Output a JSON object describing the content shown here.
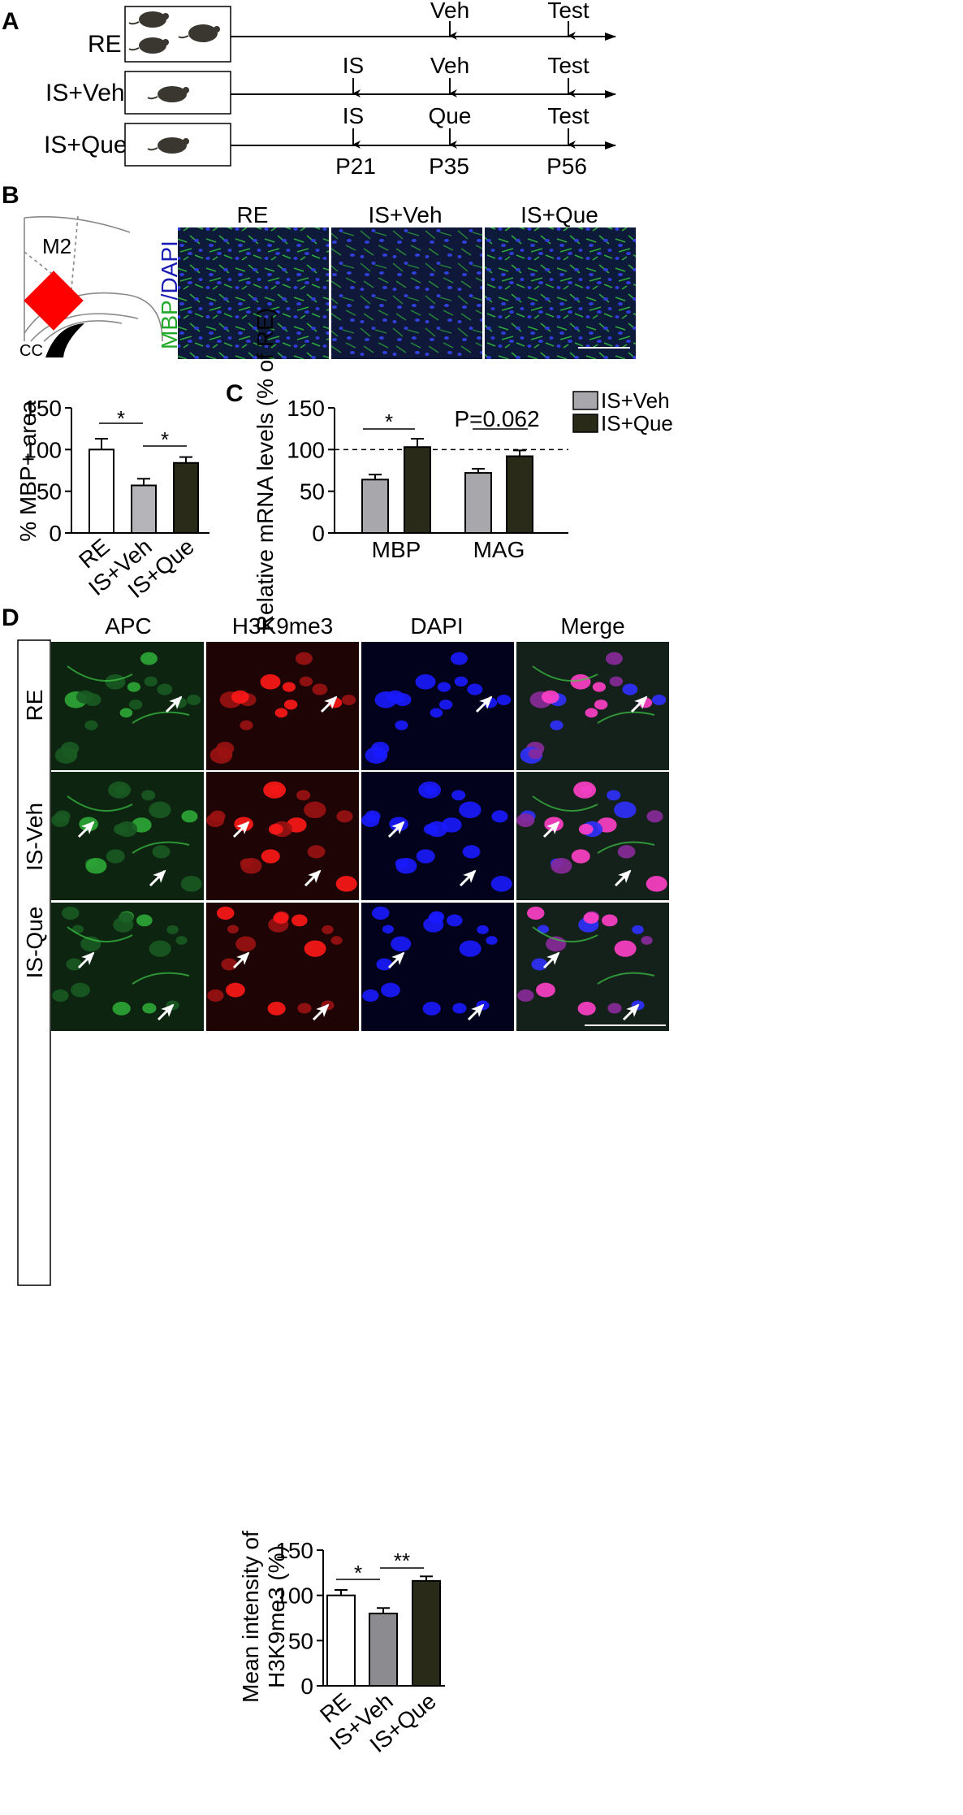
{
  "panels": {
    "A": {
      "letter": "A",
      "groups": [
        "RE",
        "IS+Veh",
        "IS+Que"
      ],
      "events": {
        "RE": {
          "veh": "Veh",
          "test": "Test"
        },
        "ISVeh": {
          "is": "IS",
          "veh": "Veh",
          "test": "Test"
        },
        "ISQue": {
          "is": "IS",
          "que": "Que",
          "test": "Test"
        }
      },
      "ages": [
        "P21",
        "P35",
        "P56"
      ]
    },
    "B": {
      "letter": "B",
      "region_label": "M2",
      "cc_label": "CC",
      "image_titles": [
        "RE",
        "IS+Veh",
        "IS+Que"
      ],
      "stain_label_mbp": "MBP",
      "stain_label_sep": "/",
      "stain_label_dapi": "DAPI",
      "colors": {
        "mbp": "#22a82a",
        "dapi": "#1a1ab4",
        "region": "#ff0000"
      }
    },
    "C": {
      "letter": "C",
      "legend": [
        "IS+Veh",
        "IS+Que"
      ],
      "pvalue_label": "P=0.062",
      "sig_label": "*"
    },
    "D": {
      "letter": "D",
      "column_titles": [
        "APC",
        "H3K9me3",
        "DAPI",
        "Merge"
      ],
      "row_labels": [
        "RE",
        "IS-Veh",
        "IS-Que"
      ],
      "colors": {
        "apc": "#2ea836",
        "h3k9me3": "#ff1010",
        "dapi": "#1a1aff",
        "merge_overlap": "#ff40c8"
      }
    }
  },
  "chart_data": [
    {
      "type": "bar",
      "id": "B-bar",
      "categories": [
        "RE",
        "IS+Veh",
        "IS+Que"
      ],
      "values": [
        100,
        57,
        84
      ],
      "errors": [
        13,
        8,
        7
      ],
      "ylabel": "% MBP+ area",
      "ylim": [
        0,
        150
      ],
      "yticks": [
        0,
        50,
        100,
        150
      ],
      "bar_colors": [
        "#ffffff",
        "#b4b4b8",
        "#2a2a18"
      ],
      "significance": [
        "*",
        "*"
      ]
    },
    {
      "type": "bar",
      "id": "C-bar",
      "categories": [
        "MBP",
        "MAG"
      ],
      "series": [
        {
          "name": "IS+Veh",
          "values": [
            64,
            72
          ],
          "errors": [
            6,
            5
          ],
          "color": "#a8a8ac"
        },
        {
          "name": "IS+Que",
          "values": [
            103,
            92
          ],
          "errors": [
            10,
            7
          ],
          "color": "#2a2a18"
        }
      ],
      "ylabel": "Relative mRNA levels (% of RE)",
      "ylim": [
        0,
        150
      ],
      "yticks": [
        0,
        50,
        100,
        150
      ],
      "reference_line": 100
    },
    {
      "type": "bar",
      "id": "D-bar",
      "categories": [
        "RE",
        "IS+Veh",
        "IS+Que"
      ],
      "values": [
        100,
        80,
        116
      ],
      "errors": [
        6,
        6,
        5
      ],
      "ylabel": "Mean intensity of H3K9me3 (%)",
      "ylim": [
        0,
        150
      ],
      "yticks": [
        0,
        50,
        100,
        150
      ],
      "bar_colors": [
        "#ffffff",
        "#8c8c90",
        "#2a2a18"
      ],
      "significance": [
        "*",
        "**"
      ]
    }
  ]
}
